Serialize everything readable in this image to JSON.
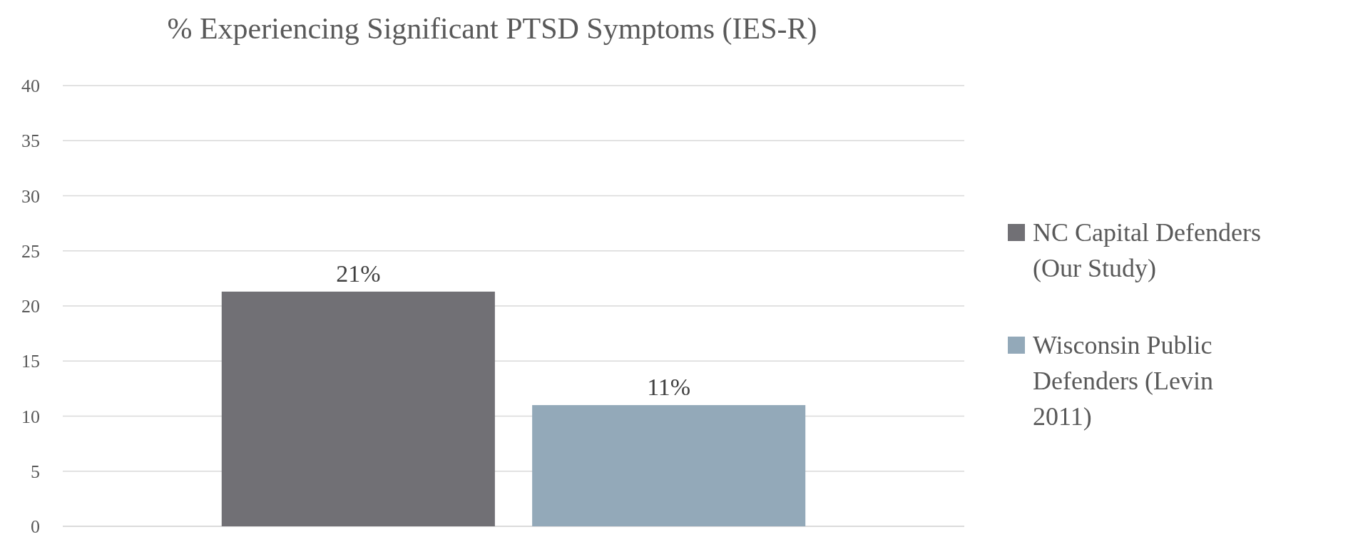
{
  "chart_data": {
    "type": "bar",
    "title": "% Experiencing Significant PTSD Symptoms (IES-R)",
    "categories": [
      null
    ],
    "series": [
      {
        "name": "NC Capital Defenders (Our Study)",
        "color": "#717075",
        "values": [
          21.3
        ],
        "value_labels": [
          "21%"
        ]
      },
      {
        "name": "Wisconsin Public Defenders (Levin 2011)",
        "color": "#93a9b9",
        "values": [
          11
        ],
        "value_labels": [
          "11%"
        ]
      }
    ],
    "ylim": [
      0,
      40
    ],
    "yticks": [
      0,
      5,
      10,
      15,
      20,
      25,
      30,
      35,
      40
    ],
    "grid": "y",
    "legend": "right"
  }
}
